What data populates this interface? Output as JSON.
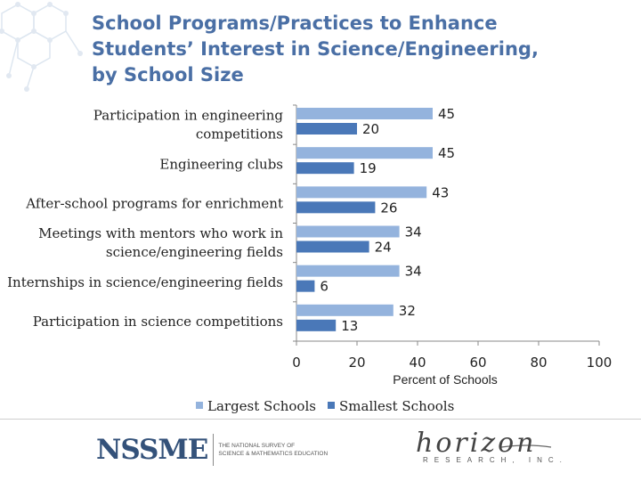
{
  "title": {
    "lines": [
      "School Programs/Practices to Enhance",
      "Students’ Interest in Science/Engineering,",
      "by School Size"
    ]
  },
  "chart_data": {
    "type": "bar",
    "orientation": "horizontal",
    "categories": [
      [
        "Participation in engineering",
        "competitions"
      ],
      [
        "Engineering clubs"
      ],
      [
        "After-school programs for enrichment"
      ],
      [
        "Meetings with mentors who work in",
        "science/engineering fields"
      ],
      [
        "Internships in science/engineering fields"
      ],
      [
        "Participation in science competitions"
      ]
    ],
    "series": [
      {
        "name": "Largest Schools",
        "color": "#94b3dd",
        "values": [
          45,
          45,
          43,
          34,
          34,
          32
        ]
      },
      {
        "name": "Smallest Schools",
        "color": "#4a78b8",
        "values": [
          20,
          19,
          26,
          24,
          6,
          13
        ]
      }
    ],
    "xlabel": "Percent of Schools",
    "xlim": [
      0,
      100
    ],
    "xticks": [
      0,
      20,
      40,
      60,
      80,
      100
    ],
    "grid": false,
    "legend_position": "bottom"
  },
  "footer": {
    "left_logo_word": "NSSME",
    "left_logo_sub_lines": [
      "THE NATIONAL SURVEY OF",
      "SCIENCE & MATHEMATICS EDUCATION"
    ],
    "right_logo_word": "horizon",
    "right_logo_sub": "RESEARCH, INC."
  }
}
